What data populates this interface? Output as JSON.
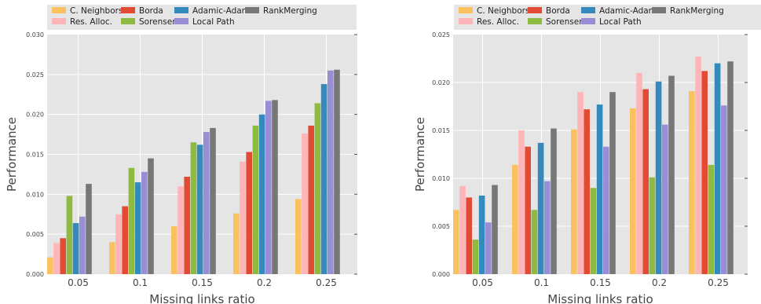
{
  "chart_data": [
    {
      "type": "bar",
      "title": "",
      "xlabel": "Missing links ratio",
      "ylabel": "Performance",
      "categories": [
        "0.05",
        "0.1",
        "0.15",
        "0.2",
        "0.25"
      ],
      "ylim": [
        0,
        0.03
      ],
      "yticks": [
        "0.000",
        "0.005",
        "0.010",
        "0.015",
        "0.020",
        "0.025",
        "0.030"
      ],
      "grid": true,
      "legend_position": "top",
      "series": [
        {
          "name": "C. Neighbors",
          "color": "#fbc15e",
          "values": [
            0.0021,
            0.004,
            0.006,
            0.0076,
            0.0094
          ]
        },
        {
          "name": "Res. Alloc.",
          "color": "#ffb5b8",
          "values": [
            0.0039,
            0.0075,
            0.011,
            0.0141,
            0.0176
          ]
        },
        {
          "name": "Borda",
          "color": "#e24a33",
          "values": [
            0.0045,
            0.0085,
            0.0122,
            0.0153,
            0.0186
          ]
        },
        {
          "name": "Sorensen",
          "color": "#8eba42",
          "values": [
            0.0098,
            0.0133,
            0.0165,
            0.0186,
            0.0214
          ]
        },
        {
          "name": "Adamic-Adar",
          "color": "#348abd",
          "values": [
            0.0064,
            0.0115,
            0.0162,
            0.02,
            0.0238
          ]
        },
        {
          "name": "Local Path",
          "color": "#988ed5",
          "values": [
            0.0072,
            0.0128,
            0.0178,
            0.0217,
            0.0255
          ]
        },
        {
          "name": "RankMerging",
          "color": "#777777",
          "values": [
            0.0113,
            0.0145,
            0.0183,
            0.0218,
            0.0256
          ]
        }
      ]
    },
    {
      "type": "bar",
      "title": "",
      "xlabel": "Missing links ratio",
      "ylabel": "Performance",
      "categories": [
        "0.05",
        "0.1",
        "0.15",
        "0.2",
        "0.25"
      ],
      "ylim": [
        0,
        0.025
      ],
      "yticks": [
        "0.000",
        "0.005",
        "0.010",
        "0.015",
        "0.020",
        "0.025"
      ],
      "grid": true,
      "legend_position": "top",
      "series": [
        {
          "name": "C. Neighbors",
          "color": "#fbc15e",
          "values": [
            0.0067,
            0.0114,
            0.0151,
            0.0173,
            0.0191
          ]
        },
        {
          "name": "Res. Alloc.",
          "color": "#ffb5b8",
          "values": [
            0.0092,
            0.015,
            0.019,
            0.021,
            0.0227
          ]
        },
        {
          "name": "Borda",
          "color": "#e24a33",
          "values": [
            0.008,
            0.0133,
            0.0172,
            0.0193,
            0.0212
          ]
        },
        {
          "name": "Sorensen",
          "color": "#8eba42",
          "values": [
            0.0036,
            0.0067,
            0.009,
            0.0101,
            0.0114
          ]
        },
        {
          "name": "Adamic-Adar",
          "color": "#348abd",
          "values": [
            0.0082,
            0.0137,
            0.0177,
            0.0201,
            0.022
          ]
        },
        {
          "name": "Local Path",
          "color": "#988ed5",
          "values": [
            0.0054,
            0.0097,
            0.0133,
            0.0156,
            0.0176
          ]
        },
        {
          "name": "RankMerging",
          "color": "#777777",
          "values": [
            0.0093,
            0.0152,
            0.019,
            0.0207,
            0.0222
          ]
        }
      ]
    }
  ]
}
